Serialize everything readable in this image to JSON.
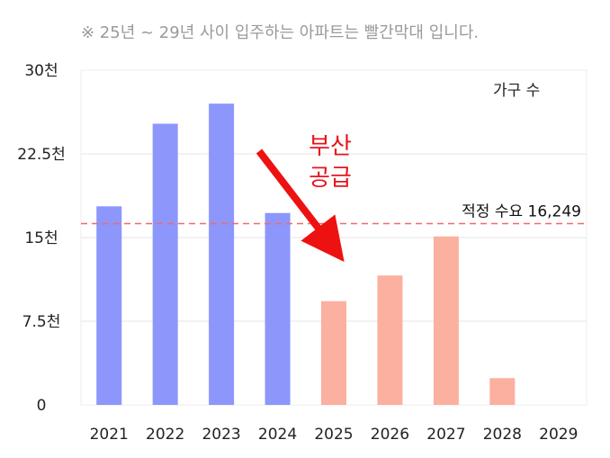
{
  "header_note": "※ 25년 ~ 29년 사이 입주하는 아파트는 빨간막대 입니다.",
  "legend_label": "가구 수",
  "reference_line": {
    "label": "적정 수요 16,249",
    "value": 16249,
    "color": "#f06a6a"
  },
  "annotation": {
    "line1": "부산",
    "line2": "공급",
    "color": "#e8141c"
  },
  "colors": {
    "past": "#8c96fb",
    "future": "#fbb0a0",
    "grid": "#e6e6e6"
  },
  "chart_data": {
    "type": "bar",
    "categories": [
      "2021",
      "2022",
      "2023",
      "2024",
      "2025",
      "2026",
      "2027",
      "2028",
      "2029"
    ],
    "values": [
      17800,
      25200,
      27000,
      17200,
      9300,
      11600,
      15100,
      2400,
      0
    ],
    "highlight_from_index": 4,
    "ylim": [
      0,
      30000
    ],
    "yticks": [
      0,
      7500,
      15000,
      22500,
      30000
    ],
    "ytick_labels": [
      "0",
      "7.5천",
      "15천",
      "22.5천",
      "30천"
    ],
    "grid": true
  }
}
